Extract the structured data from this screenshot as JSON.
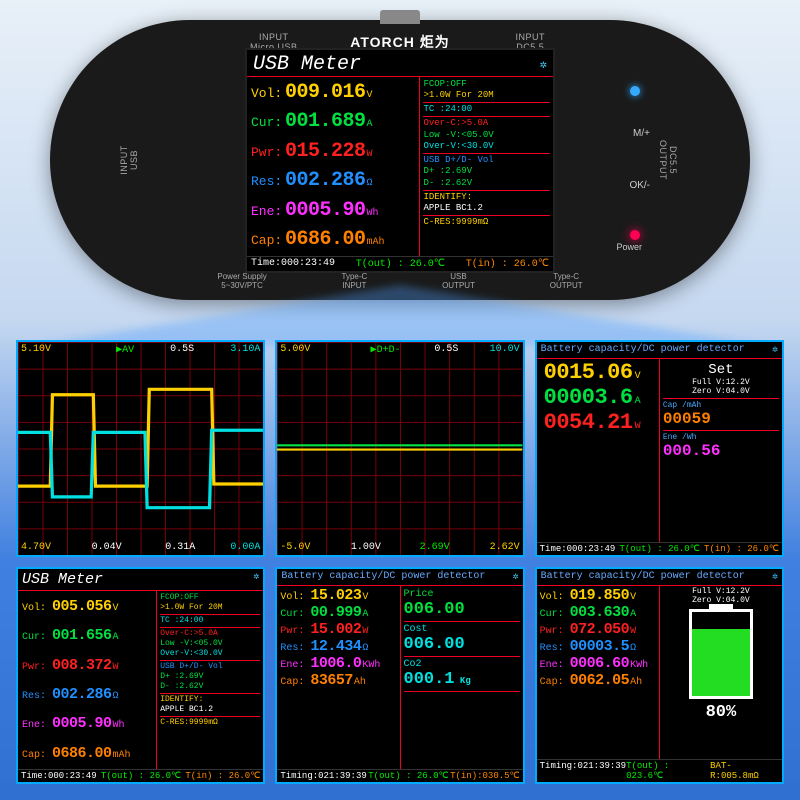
{
  "colors": {
    "yellow": "#ffd000",
    "green": "#00e040",
    "red": "#ff2020",
    "orange": "#ff8000",
    "blue": "#2090ff",
    "magenta": "#ff30ff",
    "cyan": "#00e0e0",
    "white": "#ffffff"
  },
  "device": {
    "brand": "ATORCH 炬为",
    "ports": {
      "micro": "INPUT\nMicro USB",
      "dc55t": "INPUT\nDC5.5",
      "usb_l": "INPUT\nUSB",
      "dc55r": "DC5.5\nOUTPUT"
    },
    "bottom": [
      "Power Supply\n5~30V/PTC",
      "Type-C\nINPUT",
      "USB\nOUTPUT",
      "Type-C\nOUTPUT"
    ],
    "buttons": {
      "m": "M/+",
      "ok": "OK/-",
      "power": "Power"
    }
  },
  "main": {
    "title": "USB Meter",
    "bt_icon": "✲",
    "rows": [
      {
        "lab": "Vol:",
        "val": "009.016",
        "unit": "V",
        "c": "yellow"
      },
      {
        "lab": "Cur:",
        "val": "001.689",
        "unit": "A",
        "c": "green"
      },
      {
        "lab": "Pwr:",
        "val": "015.228",
        "unit": "W",
        "c": "red"
      },
      {
        "lab": "Res:",
        "val": "002.286",
        "unit": "Ω",
        "c": "blue"
      },
      {
        "lab": "Ene:",
        "val": "0005.90",
        "unit": "Wh",
        "c": "magenta"
      },
      {
        "lab": "Cap:",
        "val": "0686.00",
        "unit": "mAh",
        "c": "orange"
      }
    ],
    "right": [
      {
        "lines": [
          [
            "FCOP:",
            "OFF",
            "green"
          ],
          [
            " >1.0W  For 20M",
            "",
            "yellow"
          ]
        ]
      },
      {
        "lines": [
          [
            "TC :",
            "24:00",
            "cyan"
          ]
        ]
      },
      {
        "lines": [
          [
            "Over-C:",
            ">5.0A",
            "red"
          ],
          [
            "Low -V:",
            "<05.0V",
            "green"
          ],
          [
            "Over-V:",
            "<30.0V",
            "cyan"
          ]
        ]
      },
      {
        "lines": [
          [
            "USB D+/D- Vol",
            "",
            "blue"
          ],
          [
            "D+ :",
            "2.69V",
            "green"
          ],
          [
            "D- :",
            "2.62V",
            "green"
          ]
        ]
      },
      {
        "lines": [
          [
            "IDENTIFY:",
            "",
            "yellow"
          ],
          [
            "APPLE    BC1.2",
            "",
            "white"
          ]
        ]
      },
      {
        "lines": [
          [
            "C-RES:",
            "9999mΩ",
            "yellow"
          ]
        ]
      }
    ],
    "time_l": "Time:000:23:49",
    "time_r": "T(out) : 26.0℃",
    "time_r2": "T(in) : 26.0℃"
  },
  "scope1": {
    "tl": "5.10V",
    "tc": "▶AV",
    "tc2": "0.5S",
    "tr": "3.10A",
    "bl": "4.70V",
    "b2": "0.04V",
    "b3": "0.31A",
    "br": "0.00A",
    "tl_c": "yellow",
    "tr_c": "cyan",
    "bl_c": "yellow",
    "br_c": "cyan",
    "poly_v": "0,110 30,110 32,25 70,25 72,110 120,110 122,20 180,20 182,108 228,108",
    "poly_a": "0,60 30,60 32,120 68,120 70,60 118,60 120,130 178,130 180,58 228,58"
  },
  "scope2": {
    "tl": "5.00V",
    "tc": "▶D+D-",
    "tc2": "0.5S",
    "tr": "10.0V",
    "bl": "-5.0V",
    "b2": "1.00V",
    "b3": "2.69V",
    "br": "2.62V",
    "tl_c": "yellow",
    "tr_c": "cyan",
    "bl_c": "yellow",
    "br_c": "cyan"
  },
  "panel3": {
    "title": "Battery capacity/DC power detector",
    "v": "0015.06",
    "a": "00003.6",
    "w": "0054.21",
    "set": "Set",
    "full": "Full V:12.2V",
    "zero": "Zero V:04.0V",
    "cap_l": "Cap /mAh",
    "cap_v": "00059",
    "ene_l": "Ene /Wh",
    "ene_v": "000.56",
    "time": "Time:000:23:49",
    "tout": "T(out) : 26.0℃",
    "tin": "T(in) : 26.0℃"
  },
  "panel4": {
    "title": "USB Meter",
    "rows": [
      {
        "lab": "Vol:",
        "val": "005.056",
        "unit": "V",
        "c": "yellow"
      },
      {
        "lab": "Cur:",
        "val": "001.656",
        "unit": "A",
        "c": "green"
      },
      {
        "lab": "Pwr:",
        "val": "008.372",
        "unit": "W",
        "c": "red"
      },
      {
        "lab": "Res:",
        "val": "002.286",
        "unit": "Ω",
        "c": "blue"
      },
      {
        "lab": "Ene:",
        "val": "0005.90",
        "unit": "Wh",
        "c": "magenta"
      },
      {
        "lab": "Cap:",
        "val": "0686.00",
        "unit": "mAh",
        "c": "orange"
      }
    ],
    "right": [
      {
        "lines": [
          [
            "FCOP:",
            "OFF",
            "green"
          ],
          [
            " >1.0W  For 20M",
            "",
            "yellow"
          ]
        ]
      },
      {
        "lines": [
          [
            "TC :",
            "24:00",
            "cyan"
          ]
        ]
      },
      {
        "lines": [
          [
            "Over-C:",
            ">5.0A",
            "red"
          ],
          [
            "Low -V:",
            "<05.0V",
            "green"
          ],
          [
            "Over-V:",
            "<30.0V",
            "cyan"
          ]
        ]
      },
      {
        "lines": [
          [
            "USB D+/D- Vol",
            "",
            "blue"
          ],
          [
            "D+ :",
            "2.69V",
            "green"
          ],
          [
            "D- :",
            "2.62V",
            "green"
          ]
        ]
      },
      {
        "lines": [
          [
            "IDENTIFY:",
            "",
            "yellow"
          ],
          [
            "APPLE    BC1.2",
            "",
            "white"
          ]
        ]
      },
      {
        "lines": [
          [
            "C-RES:",
            "9999mΩ",
            "yellow"
          ]
        ]
      }
    ],
    "time_l": "Time:000:23:49",
    "time_r": "T(out) : 26.0℃",
    "time_r2": "T(in) : 26.0℃"
  },
  "panel5": {
    "title": "Battery capacity/DC power detector",
    "rows": [
      {
        "lab": "Vol:",
        "val": "15.023",
        "unit": "V",
        "c": "yellow"
      },
      {
        "lab": "Cur:",
        "val": "00.999",
        "unit": "A",
        "c": "green"
      },
      {
        "lab": "Pwr:",
        "val": "15.002",
        "unit": "W",
        "c": "red"
      },
      {
        "lab": "Res:",
        "val": "12.434",
        "unit": "Ω",
        "c": "blue"
      },
      {
        "lab": "Ene:",
        "val": "1006.0",
        "unit": "KWh",
        "c": "magenta"
      },
      {
        "lab": "Cap:",
        "val": "83657",
        "unit": "Ah",
        "c": "orange"
      }
    ],
    "kvs": [
      {
        "k": "Price",
        "v": "006.00",
        "c": "green"
      },
      {
        "k": "Cost",
        "v": "006.00",
        "c": "cyan"
      },
      {
        "k": "Co2",
        "v": "000.1",
        "u": "Kg",
        "c": "cyan"
      }
    ],
    "time": "Timing:021:39:39",
    "tout": "T(out) : 26.0℃",
    "tin": "T(in):030.5℃"
  },
  "panel6": {
    "title": "Battery capacity/DC power detector",
    "rows": [
      {
        "lab": "Vol:",
        "val": "019.850",
        "unit": "V",
        "c": "yellow"
      },
      {
        "lab": "Cur:",
        "val": "003.630",
        "unit": "A",
        "c": "green"
      },
      {
        "lab": "Pwr:",
        "val": "072.050",
        "unit": "W",
        "c": "red"
      },
      {
        "lab": "Res:",
        "val": "00003.5",
        "unit": "Ω",
        "c": "blue"
      },
      {
        "lab": "Ene:",
        "val": "0006.60",
        "unit": "KWh",
        "c": "magenta"
      },
      {
        "lab": "Cap:",
        "val": "0062.05",
        "unit": "Ah",
        "c": "orange"
      }
    ],
    "full": "Full V:12.2V",
    "zero": "Zero V:04.0V",
    "pct": "80%",
    "fill": 80,
    "time": "Timing:021:39:39",
    "tout": "T(out) : 023.6℃",
    "bat": "BAT-R:005.8mΩ"
  }
}
